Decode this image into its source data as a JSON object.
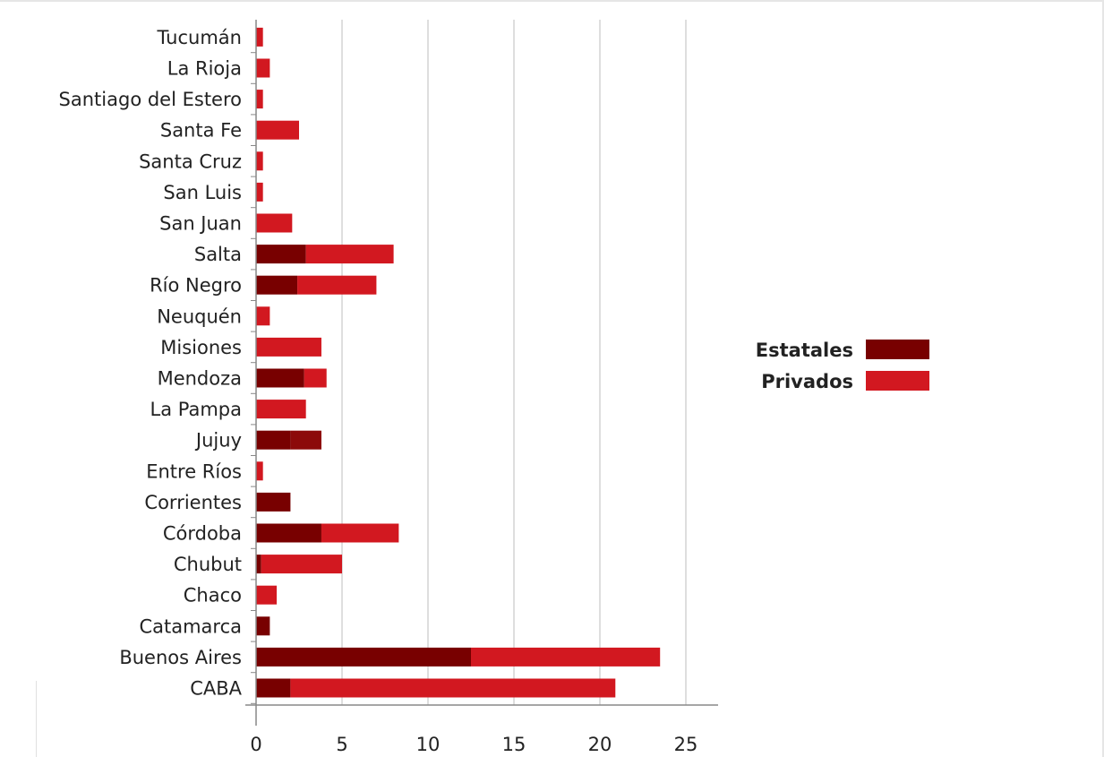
{
  "chart_data": {
    "type": "bar",
    "orientation": "horizontal",
    "stacked": true,
    "categories": [
      "CABA",
      "Buenos Aires",
      "Catamarca",
      "Chaco",
      "Chubut",
      "Córdoba",
      "Corrientes",
      "Entre Ríos",
      "Jujuy",
      "La Pampa",
      "Mendoza",
      "Misiones",
      "Neuquén",
      "Río Negro",
      "Salta",
      "San Juan",
      "San Luis",
      "Santa Cruz",
      "Santa Fe",
      "Santiago del Estero",
      "La Rioja",
      "Tucumán"
    ],
    "series": [
      {
        "name": "Estatales",
        "color": "#780000",
        "values": [
          2,
          12.5,
          0.8,
          0,
          0.3,
          3.8,
          2,
          0,
          2,
          0,
          2.8,
          0,
          0,
          2.4,
          2.9,
          0,
          0,
          0,
          0,
          0,
          0,
          0
        ]
      },
      {
        "name": "Privados",
        "color": "#d21820",
        "values": [
          18.9,
          11,
          0,
          1.2,
          4.7,
          4.5,
          0,
          0.4,
          0,
          2.9,
          1.3,
          3.8,
          0.8,
          4.6,
          5.1,
          2.1,
          0.4,
          0.4,
          2.5,
          0.4,
          0.8,
          0.4
        ]
      }
    ],
    "xlim": [
      0,
      27
    ],
    "xticks": [
      0,
      5,
      10,
      15,
      20,
      25
    ],
    "grid": "vertical",
    "legend": "right-middle",
    "extra_series_shades": {
      "Jujuy": "#8c0a0a",
      "Mendoza": "#d21820"
    }
  }
}
